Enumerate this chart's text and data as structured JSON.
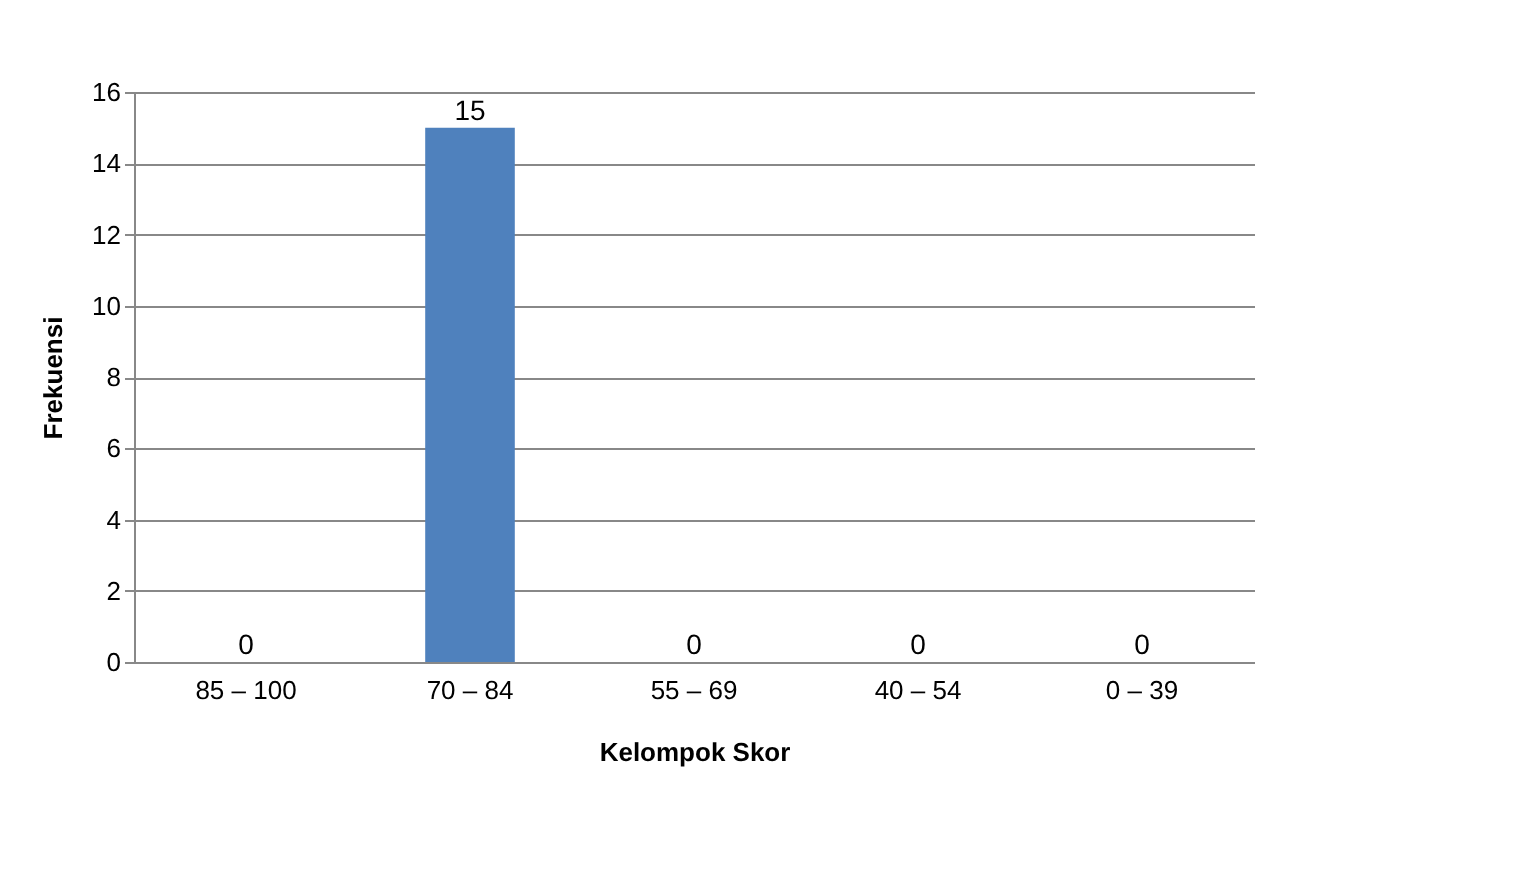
{
  "chart_data": {
    "type": "bar",
    "xlabel": "Kelompok Skor",
    "ylabel": "Frekuensi",
    "categories": [
      "85 – 100",
      "70 – 84",
      "55 – 69",
      "40 – 54",
      "0 – 39"
    ],
    "values": [
      0,
      15,
      0,
      0,
      0
    ],
    "color": "#4f81bd",
    "ylim": [
      0,
      16
    ],
    "yticks": [
      0,
      2,
      4,
      6,
      8,
      10,
      12,
      14,
      16
    ],
    "grid": "y",
    "data_labels": true
  }
}
